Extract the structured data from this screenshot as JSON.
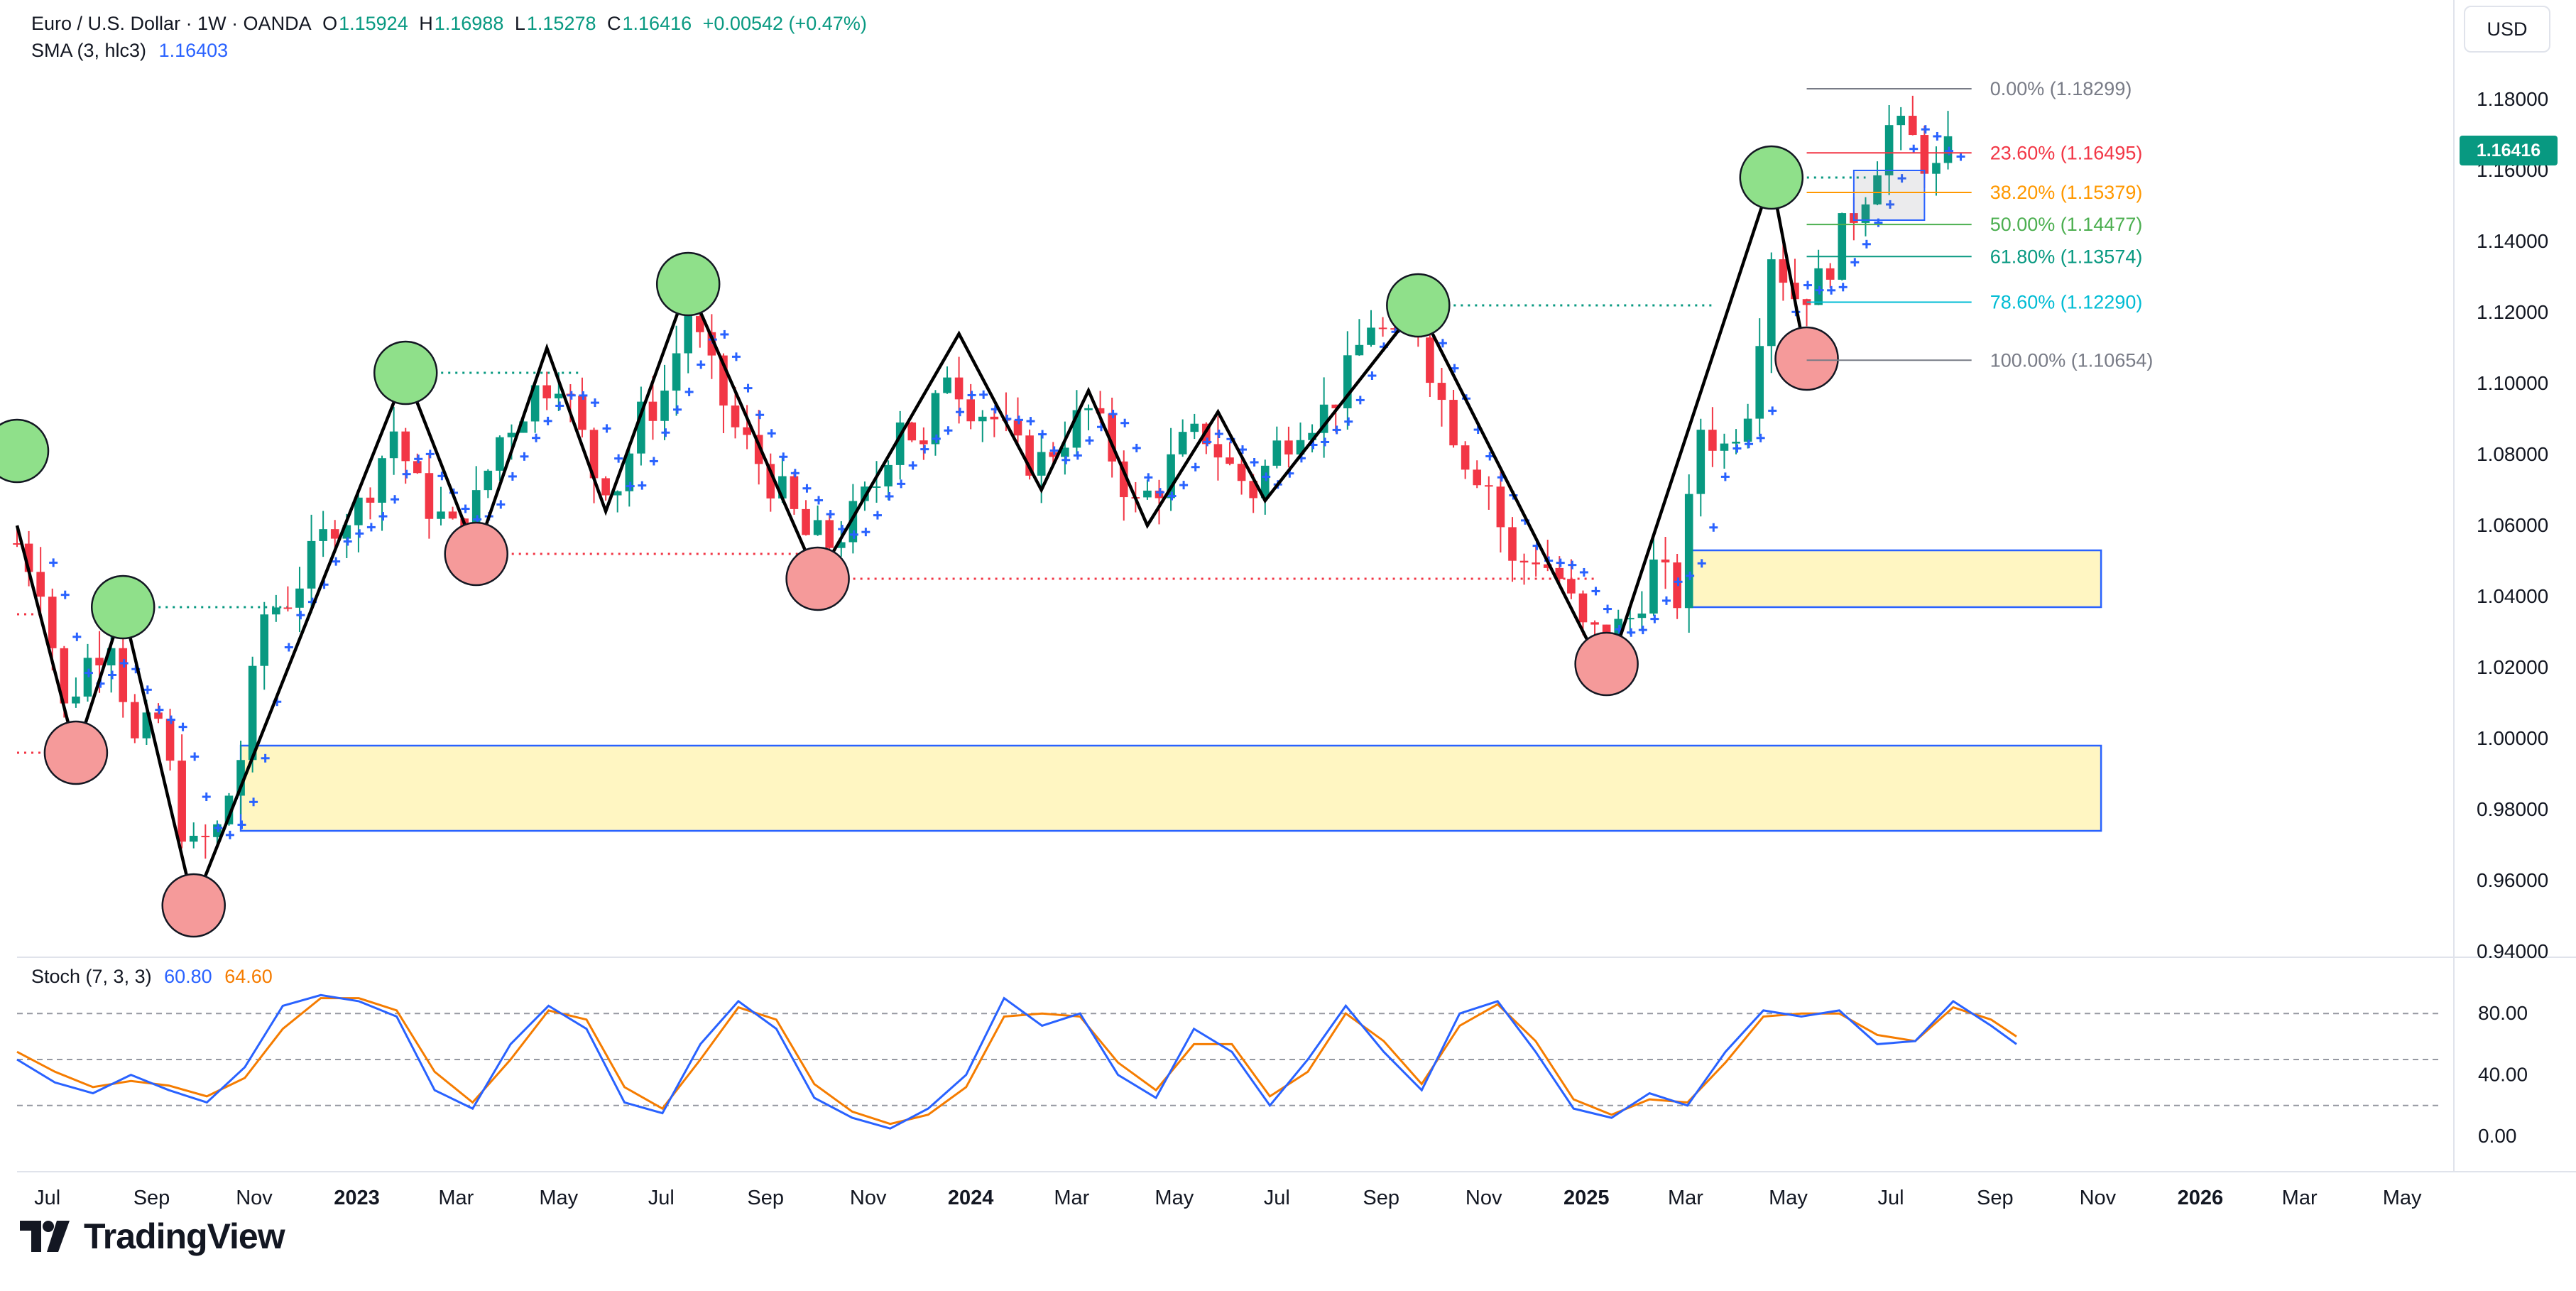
{
  "header": {
    "symbol": "Euro / U.S. Dollar · 1W · OANDA",
    "open_label": "O",
    "open": "1.15924",
    "high_label": "H",
    "high": "1.16988",
    "low_label": "L",
    "low": "1.15278",
    "close_label": "C",
    "close": "1.16416",
    "change": "+0.00542 (+0.47%)",
    "sma_label": "SMA (3, hlc3)",
    "sma_value": "1.16403"
  },
  "currency_button": "USD",
  "last_price_tag": "1.16416",
  "stoch": {
    "label": "Stoch (7, 3, 3)",
    "k_value": "60.80",
    "d_value": "64.60"
  },
  "brand": "TradingView",
  "colors": {
    "up": "#089981",
    "down": "#f23645",
    "sma_cross": "#2962ff",
    "stoch_k": "#2962ff",
    "stoch_d": "#f57c00",
    "zone_fill": "#fff6c2",
    "zone_border": "#2962ff"
  },
  "chart_data": {
    "type": "candlestick",
    "price_axis": {
      "ylim": [
        0.94,
        1.188
      ],
      "ticks": [
        "1.18000",
        "1.16000",
        "1.14000",
        "1.12000",
        "1.10000",
        "1.08000",
        "1.06000",
        "1.04000",
        "1.02000",
        "1.00000",
        "0.98000",
        "0.96000",
        "0.94000"
      ]
    },
    "time_axis": {
      "x_start": "2022-06-13",
      "x_end": "2026-05-25",
      "labels": [
        {
          "d": "2022-07-01",
          "t": "Jul",
          "bold": false
        },
        {
          "d": "2022-09-01",
          "t": "Sep",
          "bold": false
        },
        {
          "d": "2022-11-01",
          "t": "Nov",
          "bold": false
        },
        {
          "d": "2023-01-01",
          "t": "2023",
          "bold": true
        },
        {
          "d": "2023-03-01",
          "t": "Mar",
          "bold": false
        },
        {
          "d": "2023-05-01",
          "t": "May",
          "bold": false
        },
        {
          "d": "2023-07-01",
          "t": "Jul",
          "bold": false
        },
        {
          "d": "2023-09-01",
          "t": "Sep",
          "bold": false
        },
        {
          "d": "2023-11-01",
          "t": "Nov",
          "bold": false
        },
        {
          "d": "2024-01-01",
          "t": "2024",
          "bold": true
        },
        {
          "d": "2024-03-01",
          "t": "Mar",
          "bold": false
        },
        {
          "d": "2024-05-01",
          "t": "May",
          "bold": false
        },
        {
          "d": "2024-07-01",
          "t": "Jul",
          "bold": false
        },
        {
          "d": "2024-09-01",
          "t": "Sep",
          "bold": false
        },
        {
          "d": "2024-11-01",
          "t": "Nov",
          "bold": false
        },
        {
          "d": "2025-01-01",
          "t": "2025",
          "bold": true
        },
        {
          "d": "2025-03-01",
          "t": "Mar",
          "bold": false
        },
        {
          "d": "2025-05-01",
          "t": "May",
          "bold": false
        },
        {
          "d": "2025-07-01",
          "t": "Jul",
          "bold": false
        },
        {
          "d": "2025-09-01",
          "t": "Sep",
          "bold": false
        },
        {
          "d": "2025-11-01",
          "t": "Nov",
          "bold": false
        },
        {
          "d": "2026-01-01",
          "t": "2026",
          "bold": true
        },
        {
          "d": "2026-03-01",
          "t": "Mar",
          "bold": false
        },
        {
          "d": "2026-05-01",
          "t": "May",
          "bold": false
        }
      ]
    },
    "close_path": [
      [
        "2022-06-13",
        1.055
      ],
      [
        "2022-06-27",
        1.045
      ],
      [
        "2022-07-11",
        1.008
      ],
      [
        "2022-07-25",
        1.022
      ],
      [
        "2022-08-08",
        1.03
      ],
      [
        "2022-08-22",
        0.998
      ],
      [
        "2022-09-05",
        1.005
      ],
      [
        "2022-09-19",
        0.976
      ],
      [
        "2022-09-26",
        0.968
      ],
      [
        "2022-10-10",
        0.974
      ],
      [
        "2022-10-24",
        0.995
      ],
      [
        "2022-11-07",
        1.035
      ],
      [
        "2022-11-21",
        1.04
      ],
      [
        "2022-12-05",
        1.05
      ],
      [
        "2022-12-19",
        1.062
      ],
      [
        "2023-01-02",
        1.065
      ],
      [
        "2023-01-23",
        1.087
      ],
      [
        "2023-02-06",
        1.07
      ],
      [
        "2023-02-27",
        1.058
      ],
      [
        "2023-03-13",
        1.066
      ],
      [
        "2023-03-27",
        1.085
      ],
      [
        "2023-04-17",
        1.098
      ],
      [
        "2023-05-01",
        1.103
      ],
      [
        "2023-05-22",
        1.075
      ],
      [
        "2023-06-05",
        1.072
      ],
      [
        "2023-06-19",
        1.09
      ],
      [
        "2023-07-03",
        1.098
      ],
      [
        "2023-07-17",
        1.12
      ],
      [
        "2023-07-31",
        1.102
      ],
      [
        "2023-08-14",
        1.087
      ],
      [
        "2023-08-28",
        1.078
      ],
      [
        "2023-09-11",
        1.068
      ],
      [
        "2023-09-25",
        1.057
      ],
      [
        "2023-10-09",
        1.055
      ],
      [
        "2023-10-23",
        1.062
      ],
      [
        "2023-11-06",
        1.072
      ],
      [
        "2023-11-20",
        1.092
      ],
      [
        "2023-12-04",
        1.08
      ],
      [
        "2023-12-18",
        1.105
      ],
      [
        "2024-01-01",
        1.095
      ],
      [
        "2024-01-15",
        1.09
      ],
      [
        "2024-01-29",
        1.08
      ],
      [
        "2024-02-12",
        1.078
      ],
      [
        "2024-02-26",
        1.086
      ],
      [
        "2024-03-11",
        1.092
      ],
      [
        "2024-03-25",
        1.08
      ],
      [
        "2024-04-08",
        1.065
      ],
      [
        "2024-04-22",
        1.072
      ],
      [
        "2024-05-06",
        1.082
      ],
      [
        "2024-05-20",
        1.086
      ],
      [
        "2024-06-03",
        1.076
      ],
      [
        "2024-06-17",
        1.07
      ],
      [
        "2024-07-01",
        1.082
      ],
      [
        "2024-07-15",
        1.09
      ],
      [
        "2024-07-29",
        1.092
      ],
      [
        "2024-08-12",
        1.102
      ],
      [
        "2024-08-26",
        1.118
      ],
      [
        "2024-09-09",
        1.11
      ],
      [
        "2024-09-23",
        1.116
      ],
      [
        "2024-10-07",
        1.095
      ],
      [
        "2024-10-21",
        1.08
      ],
      [
        "2024-11-04",
        1.072
      ],
      [
        "2024-11-18",
        1.048
      ],
      [
        "2024-12-02",
        1.052
      ],
      [
        "2024-12-16",
        1.045
      ],
      [
        "2024-12-30",
        1.03
      ],
      [
        "2025-01-13",
        1.028
      ],
      [
        "2025-01-27",
        1.034
      ],
      [
        "2025-02-10",
        1.048
      ],
      [
        "2025-02-24",
        1.04
      ],
      [
        "2025-03-10",
        1.088
      ],
      [
        "2025-03-24",
        1.082
      ],
      [
        "2025-04-07",
        1.095
      ],
      [
        "2025-04-21",
        1.138
      ],
      [
        "2025-05-05",
        1.125
      ],
      [
        "2025-05-19",
        1.128
      ],
      [
        "2025-06-02",
        1.142
      ],
      [
        "2025-06-16",
        1.155
      ],
      [
        "2025-06-30",
        1.172
      ],
      [
        "2025-07-14",
        1.168
      ],
      [
        "2025-07-28",
        1.159
      ],
      [
        "2025-08-04",
        1.164
      ]
    ],
    "zigzag": [
      [
        "2022-06-13",
        1.06
      ],
      [
        "2022-07-18",
        0.996
      ],
      [
        "2022-08-15",
        1.037
      ],
      [
        "2022-09-26",
        0.953
      ],
      [
        "2023-01-30",
        1.103
      ],
      [
        "2023-03-13",
        1.052
      ],
      [
        "2023-04-24",
        1.11
      ],
      [
        "2023-05-29",
        1.064
      ],
      [
        "2023-07-17",
        1.128
      ],
      [
        "2023-10-02",
        1.045
      ],
      [
        "2023-12-25",
        1.114
      ],
      [
        "2024-02-12",
        1.07
      ],
      [
        "2024-03-11",
        1.098
      ],
      [
        "2024-04-15",
        1.06
      ],
      [
        "2024-05-27",
        1.092
      ],
      [
        "2024-06-24",
        1.067
      ],
      [
        "2024-09-23",
        1.122
      ],
      [
        "2025-01-13",
        1.017
      ],
      [
        "2025-04-21",
        1.158
      ],
      [
        "2025-05-12",
        1.106
      ]
    ],
    "swing_highs": [
      [
        "2022-06-13",
        1.081
      ],
      [
        "2022-08-15",
        1.037
      ],
      [
        "2023-01-30",
        1.103
      ],
      [
        "2023-07-17",
        1.128
      ],
      [
        "2024-09-23",
        1.122
      ],
      [
        "2025-04-21",
        1.158
      ]
    ],
    "swing_lows": [
      [
        "2022-07-18",
        0.996
      ],
      [
        "2022-09-26",
        0.953
      ],
      [
        "2023-03-13",
        1.052
      ],
      [
        "2023-10-02",
        1.045
      ],
      [
        "2025-01-13",
        1.021
      ],
      [
        "2025-05-12",
        1.107
      ]
    ],
    "dotted_levels": [
      {
        "from": "2022-06-13",
        "to": "2022-07-18",
        "price": 0.996,
        "color": "#f23645"
      },
      {
        "from": "2022-06-13",
        "to": "2022-06-27",
        "price": 1.035,
        "color": "#f23645"
      },
      {
        "from": "2022-08-15",
        "to": "2022-11-21",
        "price": 1.037,
        "color": "#089981"
      },
      {
        "from": "2023-01-30",
        "to": "2023-05-15",
        "price": 1.103,
        "color": "#089981"
      },
      {
        "from": "2023-03-13",
        "to": "2023-10-02",
        "price": 1.052,
        "color": "#f23645"
      },
      {
        "from": "2023-10-02",
        "to": "2025-01-06",
        "price": 1.045,
        "color": "#f23645"
      },
      {
        "from": "2024-09-23",
        "to": "2025-03-17",
        "price": 1.122,
        "color": "#089981"
      },
      {
        "from": "2025-04-21",
        "to": "2025-06-16",
        "price": 1.158,
        "color": "#089981"
      }
    ],
    "zones": [
      {
        "from": "2022-10-24",
        "to": "2025-11-03",
        "top": 0.998,
        "bottom": 0.974
      },
      {
        "from": "2025-03-03",
        "to": "2025-11-03",
        "top": 1.053,
        "bottom": 1.037
      }
    ],
    "range_box": {
      "from": "2025-06-09",
      "to": "2025-07-21",
      "top": 1.16,
      "bottom": 1.146
    },
    "fibonacci": {
      "from": "2025-05-12",
      "to": "2025-08-18",
      "levels": [
        {
          "label": "0.00% (1.18299)",
          "price": 1.18299,
          "color": "#787b86"
        },
        {
          "label": "23.60% (1.16495)",
          "price": 1.16495,
          "color": "#f23645"
        },
        {
          "label": "38.20% (1.15379)",
          "price": 1.15379,
          "color": "#ff9800"
        },
        {
          "label": "50.00% (1.14477)",
          "price": 1.14477,
          "color": "#4caf50"
        },
        {
          "label": "61.80% (1.13574)",
          "price": 1.13574,
          "color": "#089981"
        },
        {
          "label": "78.60% (1.12290)",
          "price": 1.1229,
          "color": "#00bcd4"
        },
        {
          "label": "100.00% (1.10654)",
          "price": 1.10654,
          "color": "#787b86"
        }
      ]
    },
    "stoch_panel": {
      "ylim": [
        0,
        100
      ],
      "ticks": [
        "80.00",
        "40.00",
        "0.00"
      ],
      "bands": [
        80,
        50,
        20
      ],
      "k": [
        [
          0,
          50
        ],
        [
          6,
          35
        ],
        [
          12,
          28
        ],
        [
          18,
          40
        ],
        [
          24,
          30
        ],
        [
          30,
          22
        ],
        [
          36,
          45
        ],
        [
          42,
          85
        ],
        [
          48,
          92
        ],
        [
          54,
          88
        ],
        [
          60,
          78
        ],
        [
          66,
          30
        ],
        [
          72,
          18
        ],
        [
          78,
          60
        ],
        [
          84,
          85
        ],
        [
          90,
          70
        ],
        [
          96,
          22
        ],
        [
          102,
          15
        ],
        [
          108,
          60
        ],
        [
          114,
          88
        ],
        [
          120,
          70
        ],
        [
          126,
          25
        ],
        [
          132,
          12
        ],
        [
          138,
          5
        ],
        [
          144,
          18
        ],
        [
          150,
          40
        ],
        [
          156,
          90
        ],
        [
          162,
          72
        ],
        [
          168,
          80
        ],
        [
          174,
          40
        ],
        [
          180,
          25
        ],
        [
          186,
          70
        ],
        [
          192,
          55
        ],
        [
          198,
          20
        ],
        [
          204,
          50
        ],
        [
          210,
          85
        ],
        [
          216,
          55
        ],
        [
          222,
          30
        ],
        [
          228,
          80
        ],
        [
          234,
          88
        ],
        [
          240,
          55
        ],
        [
          246,
          18
        ],
        [
          252,
          12
        ],
        [
          258,
          28
        ],
        [
          264,
          20
        ],
        [
          270,
          55
        ],
        [
          276,
          82
        ],
        [
          282,
          78
        ],
        [
          288,
          82
        ],
        [
          294,
          60
        ],
        [
          300,
          62
        ],
        [
          306,
          88
        ],
        [
          312,
          72
        ],
        [
          316,
          60
        ]
      ],
      "d": [
        [
          0,
          55
        ],
        [
          6,
          42
        ],
        [
          12,
          32
        ],
        [
          18,
          36
        ],
        [
          24,
          33
        ],
        [
          30,
          26
        ],
        [
          36,
          38
        ],
        [
          42,
          70
        ],
        [
          48,
          90
        ],
        [
          54,
          90
        ],
        [
          60,
          82
        ],
        [
          66,
          42
        ],
        [
          72,
          22
        ],
        [
          78,
          50
        ],
        [
          84,
          82
        ],
        [
          90,
          76
        ],
        [
          96,
          32
        ],
        [
          102,
          18
        ],
        [
          108,
          50
        ],
        [
          114,
          84
        ],
        [
          120,
          76
        ],
        [
          126,
          34
        ],
        [
          132,
          16
        ],
        [
          138,
          8
        ],
        [
          144,
          14
        ],
        [
          150,
          32
        ],
        [
          156,
          78
        ],
        [
          162,
          80
        ],
        [
          168,
          78
        ],
        [
          174,
          48
        ],
        [
          180,
          30
        ],
        [
          186,
          60
        ],
        [
          192,
          60
        ],
        [
          198,
          26
        ],
        [
          204,
          42
        ],
        [
          210,
          80
        ],
        [
          216,
          62
        ],
        [
          222,
          34
        ],
        [
          228,
          72
        ],
        [
          234,
          86
        ],
        [
          240,
          62
        ],
        [
          246,
          24
        ],
        [
          252,
          14
        ],
        [
          258,
          24
        ],
        [
          264,
          22
        ],
        [
          270,
          48
        ],
        [
          276,
          78
        ],
        [
          282,
          80
        ],
        [
          288,
          80
        ],
        [
          294,
          66
        ],
        [
          300,
          62
        ],
        [
          306,
          84
        ],
        [
          312,
          76
        ],
        [
          316,
          65
        ]
      ]
    }
  }
}
